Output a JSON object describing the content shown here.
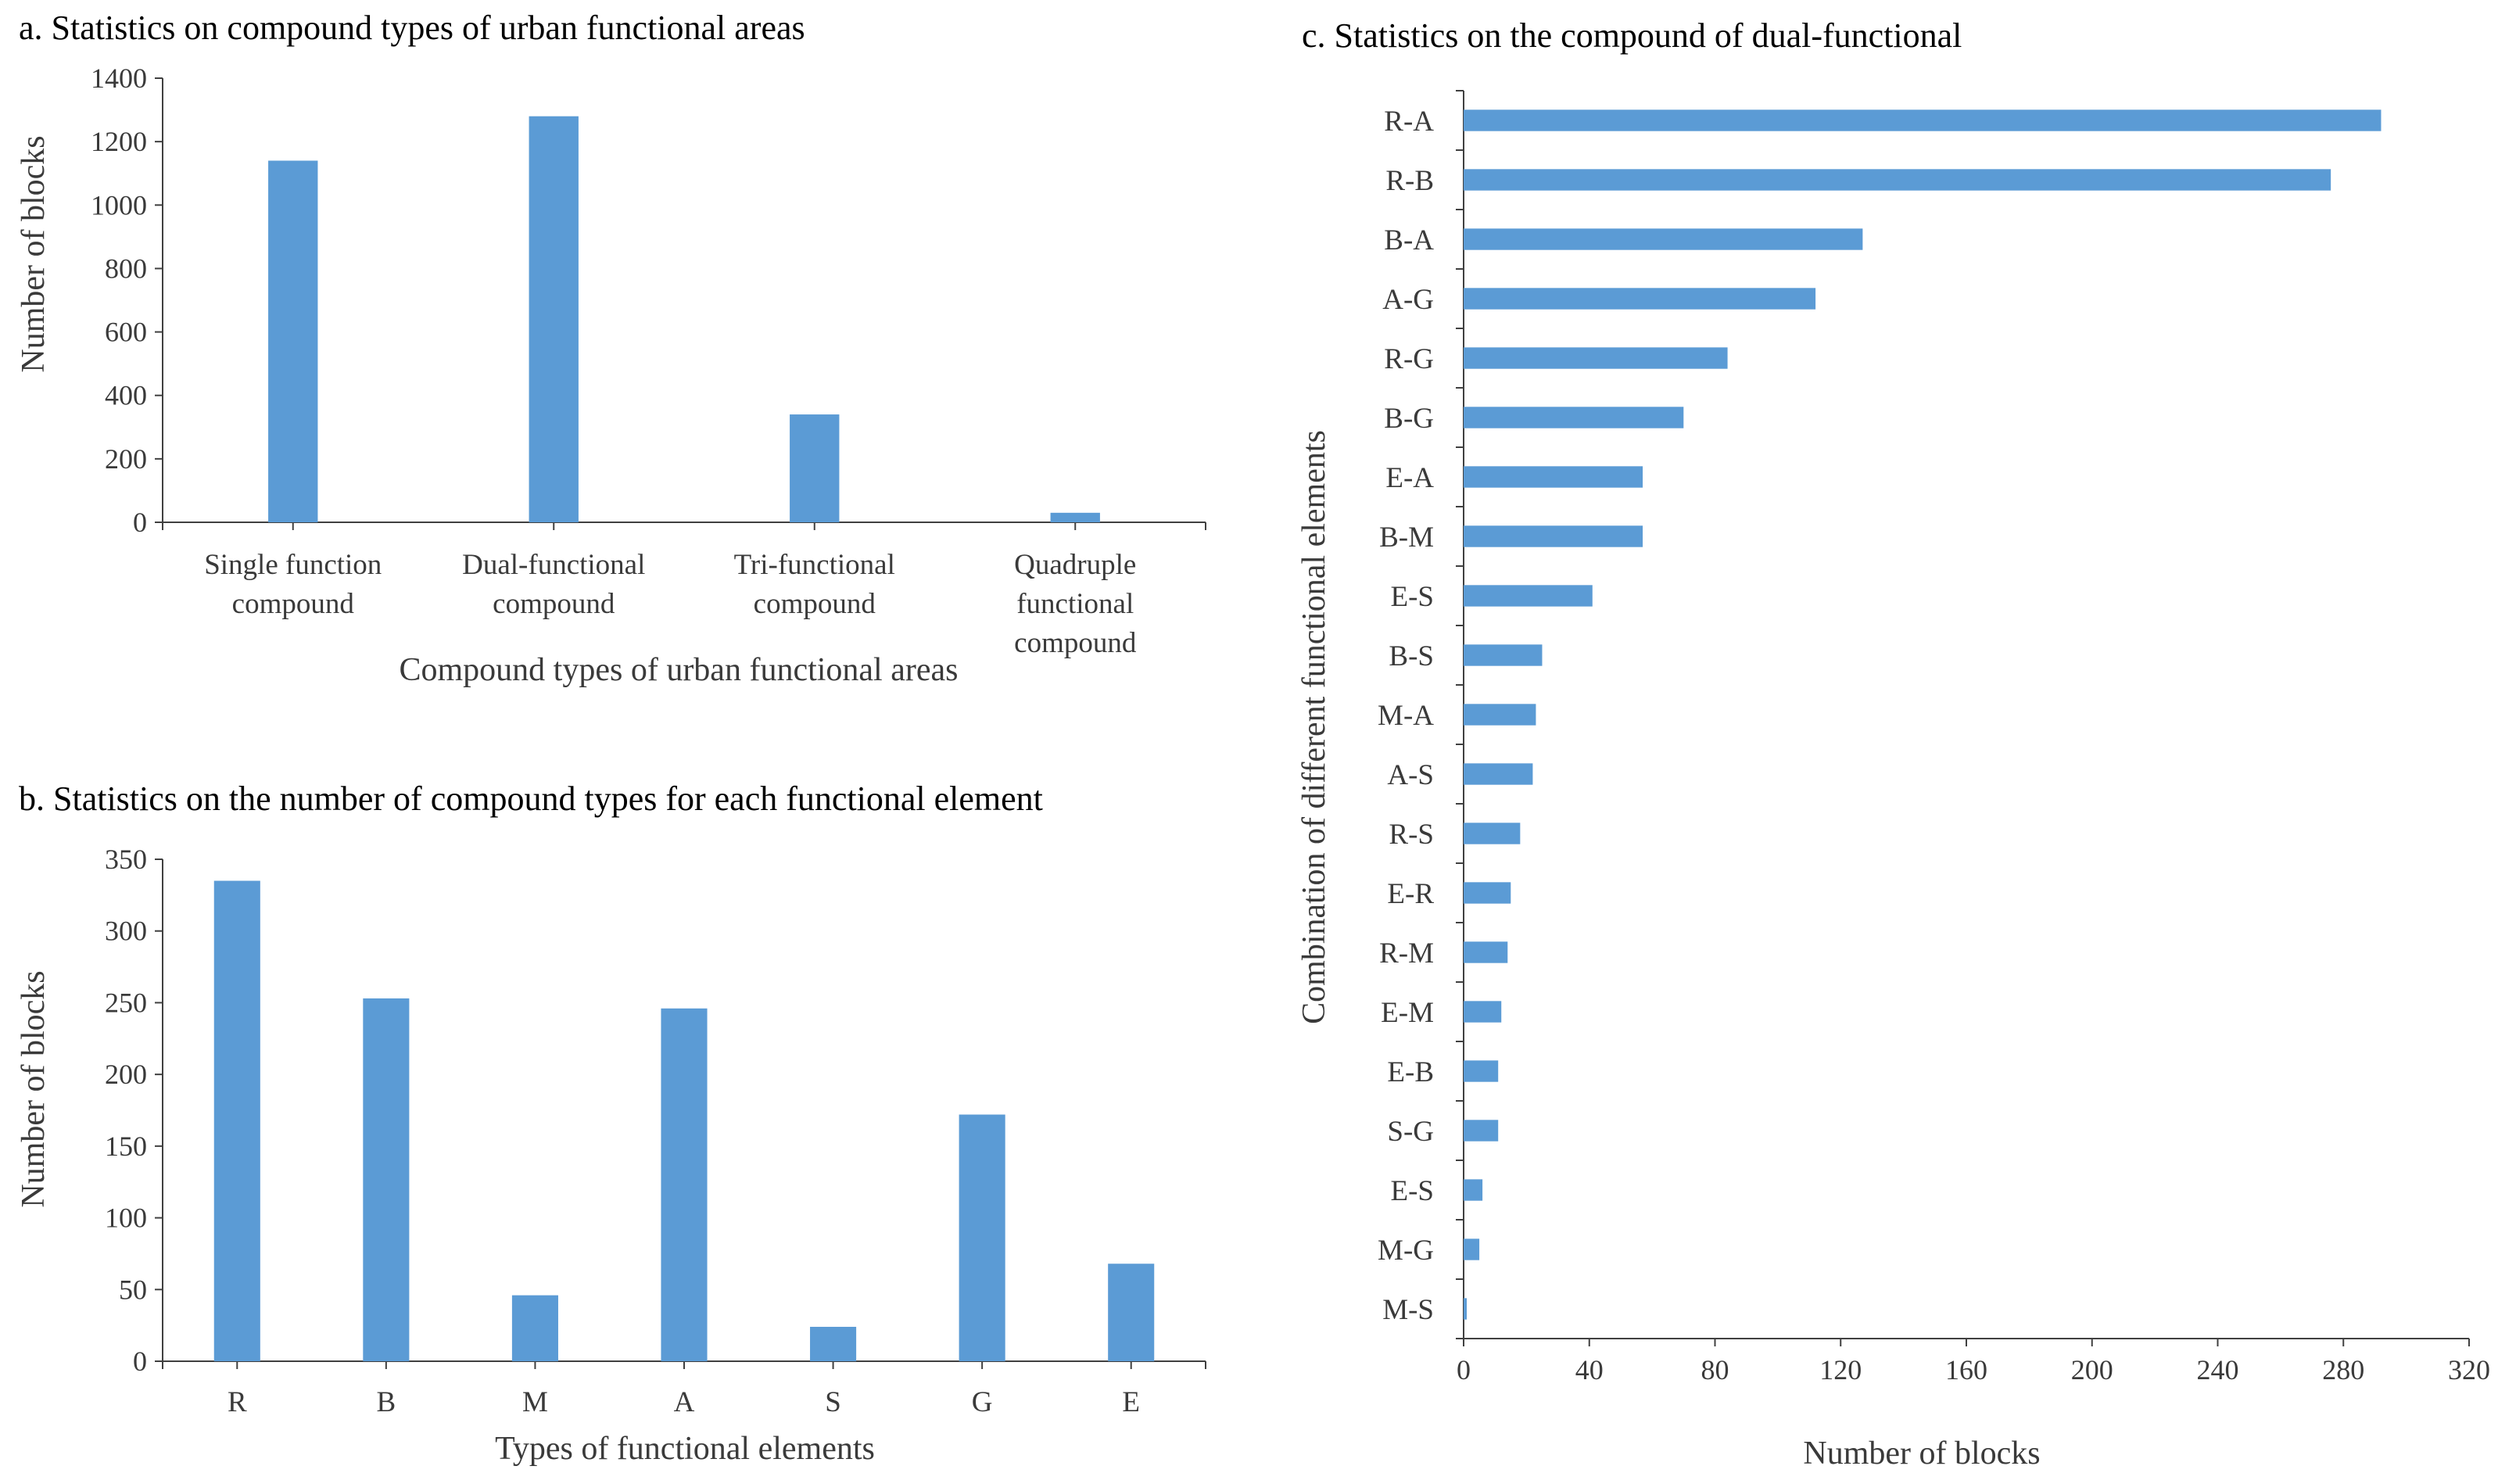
{
  "colors": {
    "bar": "#5B9BD5",
    "axis": "#404040",
    "text": "#3a3a3a"
  },
  "chart_data": [
    {
      "id": "a",
      "type": "bar",
      "title": "a. Statistics  on compound types  of urban functional  areas",
      "xlabel": "Compound  types of urban functional  areas",
      "ylabel": "Number of blocks",
      "categories": [
        [
          "Single function",
          "compound"
        ],
        [
          "Dual-functional",
          "compound"
        ],
        [
          "Tri-functional",
          "compound"
        ],
        [
          "Quadruple",
          "functional",
          "compound"
        ]
      ],
      "values": [
        1140,
        1280,
        340,
        30
      ],
      "ylim": [
        0,
        1400
      ],
      "yticks": [
        "0",
        "200",
        "400",
        "600",
        "800",
        "1000",
        "1200",
        "1400"
      ],
      "grid": false
    },
    {
      "id": "b",
      "type": "bar",
      "title": "b. Statistics  on the number  of compound types for  each functional  element",
      "xlabel": "Types of functional  elements",
      "ylabel": "Number of blocks",
      "categories": [
        "R",
        "B",
        "M",
        "A",
        "S",
        "G",
        "E"
      ],
      "values": [
        335,
        253,
        46,
        246,
        24,
        172,
        68
      ],
      "ylim": [
        0,
        350
      ],
      "yticks": [
        "0",
        "50",
        "100",
        "150",
        "200",
        "250",
        "300",
        "350"
      ],
      "grid": false
    },
    {
      "id": "c",
      "type": "bar",
      "orientation": "horizontal",
      "title": "c. Statistics  on the compound  of dual-functional",
      "xlabel": "Number of blocks",
      "ylabel": "Combination  of different functional  elements",
      "categories": [
        "R-A",
        "R-B",
        "B-A",
        "A-G",
        "R-G",
        "B-G",
        "E-A",
        "B-M",
        "E-S",
        "B-S",
        "M-A",
        "A-S",
        "R-S",
        "E-R",
        "R-M",
        "E-M",
        "E-B",
        "S-G",
        "E-S",
        "M-G",
        "M-S"
      ],
      "values": [
        292,
        276,
        127,
        112,
        84,
        70,
        57,
        57,
        41,
        25,
        23,
        22,
        18,
        15,
        14,
        12,
        11,
        11,
        6,
        5,
        1
      ],
      "xlim": [
        0,
        320
      ],
      "xticks": [
        "0",
        "40",
        "80",
        "120",
        "160",
        "200",
        "240",
        "280",
        "320"
      ],
      "grid": false
    }
  ]
}
